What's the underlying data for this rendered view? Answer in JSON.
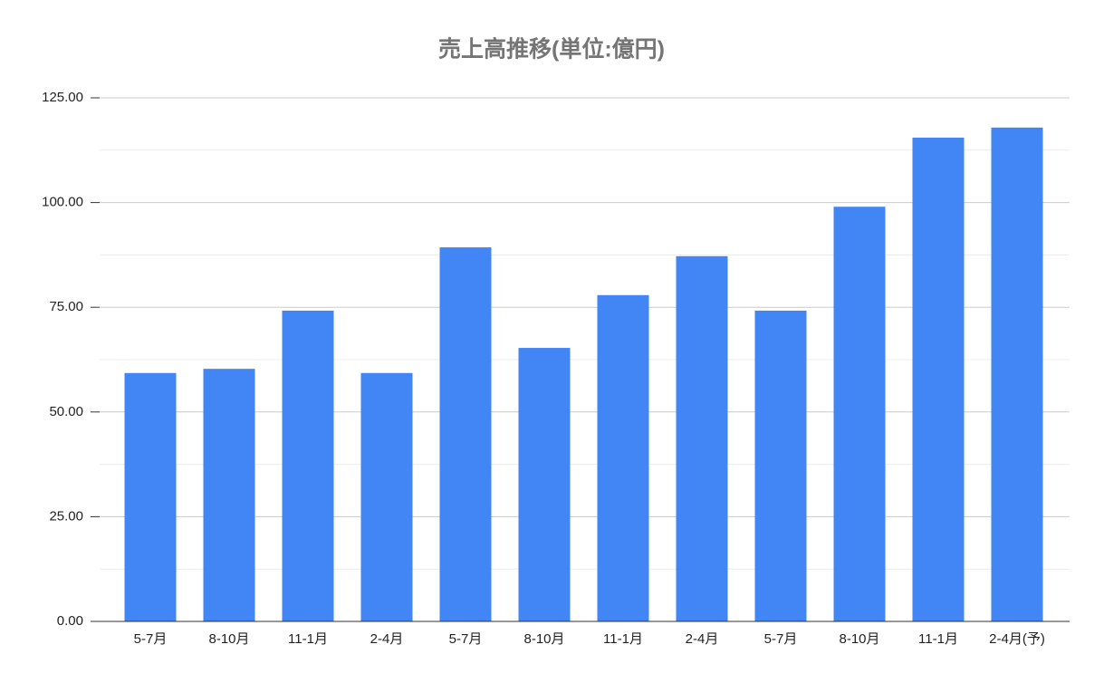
{
  "chart_data": {
    "type": "bar",
    "title": "売上高推移(単位:億円)",
    "categories": [
      "5-7月",
      "8-10月",
      "11-1月",
      "2-4月",
      "5-7月",
      "8-10月",
      "11-1月",
      "2-4月",
      "5-7月",
      "8-10月",
      "11-1月",
      "2-4月(予)"
    ],
    "values": [
      59.3,
      60.3,
      74.2,
      59.3,
      89.3,
      65.3,
      77.9,
      87.2,
      74.2,
      99.0,
      115.5,
      117.9
    ],
    "color": "#4285f4",
    "ylim": [
      0,
      125
    ],
    "yticks": [
      {
        "value": 0,
        "label": "0.00"
      },
      {
        "value": 25,
        "label": "25.00"
      },
      {
        "value": 50,
        "label": "50.00"
      },
      {
        "value": 75,
        "label": "75.00"
      },
      {
        "value": 100,
        "label": "100.00"
      },
      {
        "value": 125,
        "label": "125.00"
      }
    ],
    "minor_yticks": [
      12.5,
      37.5,
      62.5,
      87.5,
      112.5
    ],
    "grid": true
  }
}
